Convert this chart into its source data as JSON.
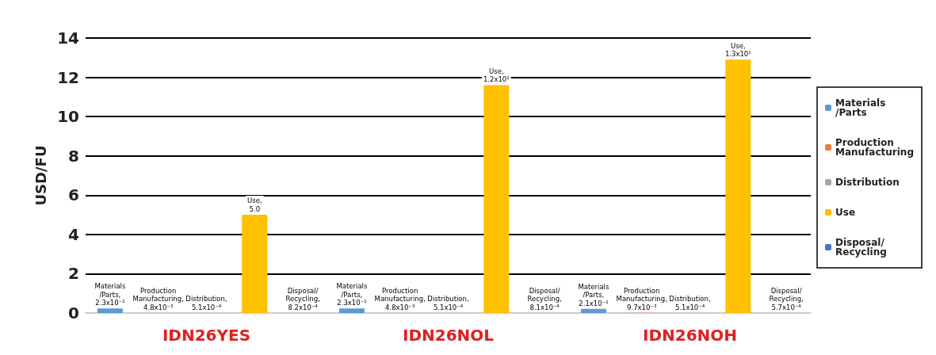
{
  "chart_data": {
    "type": "bar",
    "ylabel": "USD/FU",
    "categories": [
      "IDN26YES",
      "IDN26NOL",
      "IDN26NOH"
    ],
    "series": [
      {
        "name": "Materials /Parts",
        "color": "#5b9bd5",
        "values": [
          0.23,
          0.23,
          0.21
        ],
        "value_labels": [
          "Materials /Parts, 2.3x10⁻¹",
          "Materials /Parts, 2.3x10⁻¹",
          "Materials /Parts, 2.1x10⁻¹"
        ]
      },
      {
        "name": "Production Manufacturing",
        "color": "#ed7d31",
        "values": [
          0.0048,
          0.0048,
          0.0097
        ],
        "value_labels": [
          "Production Manufacturing, 4.8x10⁻³",
          "Production Manufacturing, 4.8x10⁻³",
          "Production Manufacturing, 9.7x10⁻³"
        ]
      },
      {
        "name": "Distribution",
        "color": "#a5a5a5",
        "values": [
          0.00051,
          0.00051,
          0.00051
        ],
        "value_labels": [
          "Distribution, 5.1x10⁻⁴",
          "Distribution, 5.1x10⁻⁴",
          "Distribution, 5.1x10⁻⁴"
        ]
      },
      {
        "name": "Use",
        "color": "#ffc000",
        "values": [
          5.0,
          11.6,
          12.9
        ],
        "value_labels": [
          "Use, 5.0",
          "Use, 1.2x10¹",
          "Use, 1.3x10¹"
        ]
      },
      {
        "name": "Disposal/ Recycling",
        "color": "#4472c4",
        "values": [
          0.00082,
          0.00081,
          0.00057
        ],
        "value_labels": [
          "Disposal/ Recycling, 8.2x10⁻⁴",
          "Disposal/ Recycling, 8.1x10⁻⁴",
          "Disposal/ Recycling, 5.7x10⁻⁴"
        ]
      }
    ],
    "ylim": [
      0,
      14
    ],
    "yticks": [
      0,
      2,
      4,
      6,
      8,
      10,
      12,
      14
    ],
    "grid": "y",
    "legend": "right"
  }
}
